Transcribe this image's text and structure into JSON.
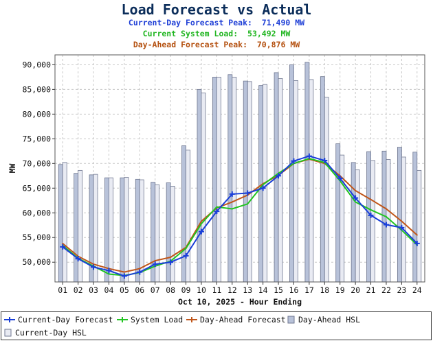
{
  "chart_data": {
    "type": "line",
    "title": "Load Forecast vs Actual",
    "subtitles": [
      {
        "label": "Current-Day Forecast Peak:",
        "value": "71,490 MW"
      },
      {
        "label": "Current System Load:",
        "value": "53,492 MW"
      },
      {
        "label": "Day-Ahead Forecast Peak:",
        "value": "70,876 MW"
      }
    ],
    "xlabel": "Oct 10, 2025 - Hour Ending",
    "ylabel": "MW",
    "ylim": [
      46000,
      92000
    ],
    "yticks": [
      50000,
      55000,
      60000,
      65000,
      70000,
      75000,
      80000,
      85000,
      90000
    ],
    "ytick_labels": [
      "50,000",
      "55,000",
      "60,000",
      "65,000",
      "70,000",
      "75,000",
      "80,000",
      "85,000",
      "90,000"
    ],
    "categories": [
      "01",
      "02",
      "03",
      "04",
      "05",
      "06",
      "07",
      "08",
      "09",
      "10",
      "11",
      "12",
      "13",
      "14",
      "15",
      "16",
      "17",
      "18",
      "19",
      "20",
      "21",
      "22",
      "23",
      "24"
    ],
    "grid": true,
    "legend_position": "bottom",
    "series": [
      {
        "name": "Current-Day Forecast",
        "kind": "line",
        "color": "#1a3fd8",
        "marker": "plus",
        "values": [
          53100,
          50700,
          49000,
          48300,
          47200,
          48000,
          49600,
          50000,
          51300,
          56200,
          60300,
          63800,
          64000,
          65000,
          67500,
          70500,
          71490,
          70600,
          67000,
          63000,
          59500,
          57600,
          57000,
          53800
        ]
      },
      {
        "name": "System Load",
        "kind": "line",
        "color": "#22c422",
        "marker": "none",
        "values": [
          53400,
          50800,
          49200,
          47600,
          47300,
          47900,
          49200,
          50200,
          52800,
          57800,
          61200,
          60800,
          61800,
          65700,
          68000,
          70000,
          71000,
          70200,
          66500,
          62200,
          60600,
          59200,
          56500,
          53492
        ]
      },
      {
        "name": "Day-Ahead Forecast",
        "kind": "line",
        "color": "#c0561a",
        "marker": "none",
        "values": [
          53800,
          51200,
          49600,
          48700,
          48000,
          48700,
          50300,
          51000,
          53000,
          58300,
          61000,
          62200,
          63600,
          65900,
          67600,
          70000,
          70876,
          70000,
          67500,
          64500,
          62700,
          60800,
          58300,
          55500
        ]
      },
      {
        "name": "Day-Ahead HSL",
        "kind": "bar",
        "color": "#b8c2d9",
        "values": [
          69800,
          68000,
          67700,
          67100,
          67100,
          66800,
          66200,
          66100,
          73600,
          85000,
          87500,
          88000,
          86700,
          85800,
          88400,
          90000,
          90500,
          87600,
          74000,
          70200,
          72400,
          72500,
          73300,
          72300
        ]
      },
      {
        "name": "Current-Day HSL",
        "kind": "bar",
        "color": "#e9ebf3",
        "values": [
          70200,
          68600,
          67800,
          67100,
          67200,
          66700,
          65700,
          65400,
          72700,
          84300,
          87500,
          87500,
          86600,
          86000,
          87200,
          86800,
          87000,
          83400,
          71700,
          68700,
          70600,
          70800,
          71300,
          68600
        ]
      }
    ]
  }
}
